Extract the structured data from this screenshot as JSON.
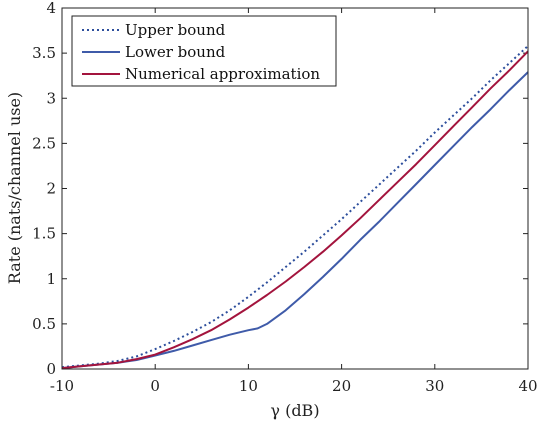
{
  "chart_data": {
    "type": "line",
    "xlabel": "γ (dB)",
    "ylabel": "Rate (nats/channel use)",
    "xlim": [
      -10,
      40
    ],
    "ylim": [
      0,
      4
    ],
    "xticks": [
      -10,
      0,
      10,
      20,
      30,
      40
    ],
    "yticks": [
      0,
      0.5,
      1,
      1.5,
      2,
      2.5,
      3,
      3.5,
      4
    ],
    "xtick_labels": [
      "-10",
      "0",
      "10",
      "20",
      "30",
      "40"
    ],
    "ytick_labels": [
      "0",
      "0.5",
      "1",
      "1.5",
      "2",
      "2.5",
      "3",
      "3.5",
      "4"
    ],
    "grid": false,
    "legend_position": "top-left",
    "series": [
      {
        "name": "Upper bound",
        "color": "#2d4e9c",
        "style": "dotted",
        "x": [
          -10,
          -8,
          -6,
          -4,
          -2,
          0,
          2,
          4,
          6,
          8,
          10,
          12,
          14,
          16,
          18,
          20,
          22,
          24,
          26,
          28,
          30,
          32,
          34,
          36,
          38,
          40
        ],
        "y": [
          0.02,
          0.04,
          0.06,
          0.09,
          0.14,
          0.22,
          0.31,
          0.41,
          0.52,
          0.65,
          0.8,
          0.96,
          1.13,
          1.3,
          1.48,
          1.66,
          1.85,
          2.04,
          2.23,
          2.42,
          2.62,
          2.81,
          3.0,
          3.2,
          3.39,
          3.58
        ]
      },
      {
        "name": "Lower bound",
        "color": "#3f5ba9",
        "style": "solid",
        "x": [
          -10,
          -8,
          -6,
          -4,
          -2,
          0,
          2,
          4,
          6,
          8,
          10,
          11,
          12,
          14,
          16,
          18,
          20,
          22,
          24,
          26,
          28,
          30,
          32,
          34,
          36,
          38,
          40
        ],
        "y": [
          0.01,
          0.03,
          0.05,
          0.07,
          0.1,
          0.15,
          0.2,
          0.26,
          0.32,
          0.38,
          0.43,
          0.45,
          0.5,
          0.65,
          0.83,
          1.02,
          1.22,
          1.43,
          1.63,
          1.84,
          2.05,
          2.26,
          2.47,
          2.68,
          2.88,
          3.09,
          3.29
        ]
      },
      {
        "name": "Numerical approximation",
        "color": "#a3143d",
        "style": "solid",
        "x": [
          -10,
          -8,
          -6,
          -4,
          -2,
          0,
          2,
          4,
          6,
          8,
          10,
          12,
          14,
          16,
          18,
          20,
          22,
          24,
          26,
          28,
          30,
          32,
          34,
          36,
          38,
          40
        ],
        "y": [
          0.01,
          0.03,
          0.05,
          0.07,
          0.11,
          0.16,
          0.24,
          0.33,
          0.43,
          0.55,
          0.68,
          0.82,
          0.97,
          1.13,
          1.3,
          1.48,
          1.67,
          1.87,
          2.07,
          2.27,
          2.48,
          2.69,
          2.9,
          3.11,
          3.31,
          3.52
        ]
      }
    ]
  }
}
